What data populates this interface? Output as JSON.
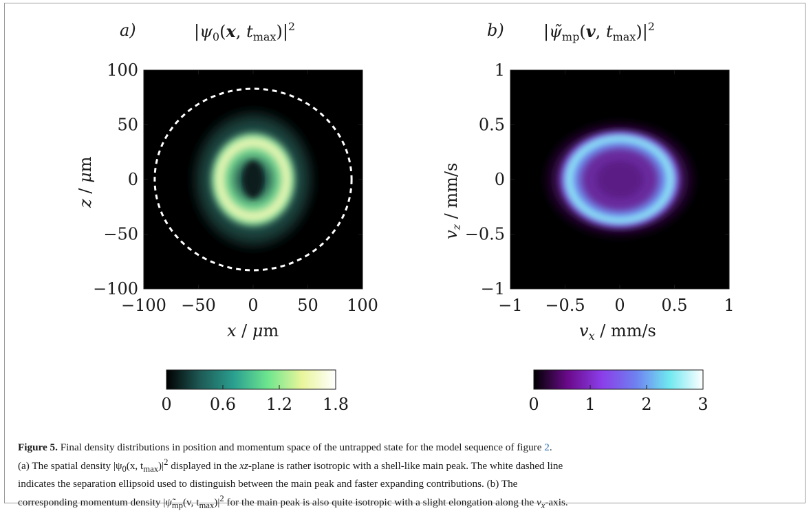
{
  "figure": {
    "panel_a_letter": "a)",
    "panel_b_letter": "b)",
    "panel_a_title": "|ψ0(x, tmax)|²",
    "panel_b_title": "|ψ̃mp(v, tmax)|²",
    "colorbar_a_ticks": [
      "0",
      "0.6",
      "1.2",
      "1.8"
    ],
    "colorbar_b_ticks": [
      "0",
      "1",
      "2",
      "3"
    ],
    "colorbar_a_colors": [
      "#000000",
      "#1e5a56",
      "#2aa090",
      "#6ee68e",
      "#e9f59a",
      "#ffffff"
    ],
    "colorbar_b_colors": [
      "#000000",
      "#6a0a8a",
      "#8b3de8",
      "#6f7ff0",
      "#6fe8f0",
      "#ffffff"
    ]
  },
  "chart_data": [
    {
      "type": "heatmap",
      "title": "|ψ0(x, tmax)|²",
      "xlabel": "x / μm",
      "ylabel": "z / μm",
      "xlim": [
        -100,
        100
      ],
      "ylim": [
        -100,
        100
      ],
      "xticks": [
        -100,
        -50,
        0,
        50,
        100
      ],
      "yticks": [
        -100,
        -50,
        0,
        50,
        100
      ],
      "xtick_labels": [
        "−100",
        "−50",
        "0",
        "50",
        "100"
      ],
      "ytick_labels": [
        "−100",
        "−50",
        "0",
        "50",
        "100"
      ],
      "colorbar_range": [
        0,
        1.8
      ],
      "annotations": [
        {
          "kind": "dashed-ellipse",
          "color": "#ffffff",
          "cx": 0,
          "cz": 0,
          "rx": 90,
          "rz": 83
        }
      ],
      "features": [
        {
          "kind": "ring",
          "shape": "rounded-square",
          "cx": 0,
          "cz": 0,
          "rx": 27,
          "rz": 32,
          "level": 1.8
        },
        {
          "kind": "halo",
          "cx": 0,
          "cz": 0,
          "rx": 58,
          "rz": 66,
          "level": 0.6
        },
        {
          "kind": "center-hole",
          "cx": 0,
          "cz": 0,
          "level": 0.2
        }
      ]
    },
    {
      "type": "heatmap",
      "title": "|ψ̃mp(v, tmax)|²",
      "xlabel": "vx / mm/s",
      "ylabel": "vz / mm/s",
      "xlim": [
        -1,
        1
      ],
      "ylim": [
        -1,
        1
      ],
      "xticks": [
        -1,
        -0.5,
        0,
        0.5,
        1
      ],
      "yticks": [
        -1,
        -0.5,
        0,
        0.5,
        1
      ],
      "xtick_labels": [
        "−1",
        "−0.5",
        "0",
        "0.5",
        "1"
      ],
      "ytick_labels": [
        "−1",
        "−0.5",
        "0",
        "0.5",
        "1"
      ],
      "colorbar_range": [
        0,
        3
      ],
      "features": [
        {
          "kind": "ring",
          "shape": "ellipse",
          "cx": 0,
          "cz": 0,
          "rx": 0.49,
          "rz": 0.39,
          "level": 3
        },
        {
          "kind": "halo",
          "cx": 0,
          "cz": 0,
          "rx": 0.72,
          "rz": 0.55,
          "level": 0.6
        },
        {
          "kind": "center",
          "cx": 0,
          "cz": 0,
          "level": 0.9
        }
      ]
    }
  ],
  "caption": {
    "label": "Figure 5.",
    "intro": " Final density distributions in position and momentum space of the untrapped state for the model sequence of figure ",
    "figref": "2",
    "intro_end": ".",
    "line2_start": "(a) The spatial density |ψ",
    "line2_sub0": "0",
    "line2_args": "(x,  t",
    "line2_submax": "max",
    "line2_rest": ")|",
    "line2_sup": "2",
    "line2_mid": " displayed in the ",
    "line2_plane": "xz",
    "line2_end": "-plane is rather isotropic with a shell-like main peak. The white dashed line",
    "line3": "indicates the separation ellipsoid used to distinguish between the main peak and faster expanding contributions. (b) The",
    "line4_start": "corresponding momentum density |",
    "line4_psi": "ψ̃",
    "line4_submp": "mp",
    "line4_args": "(v,  t",
    "line4_submax": "max",
    "line4_rest": ")|",
    "line4_sup": "2",
    "line4_mid": " for the main peak is also quite isotropic with a slight elongation along the ",
    "line4_axis": "v",
    "line4_axis_sub": "x",
    "line4_end": "-axis."
  }
}
